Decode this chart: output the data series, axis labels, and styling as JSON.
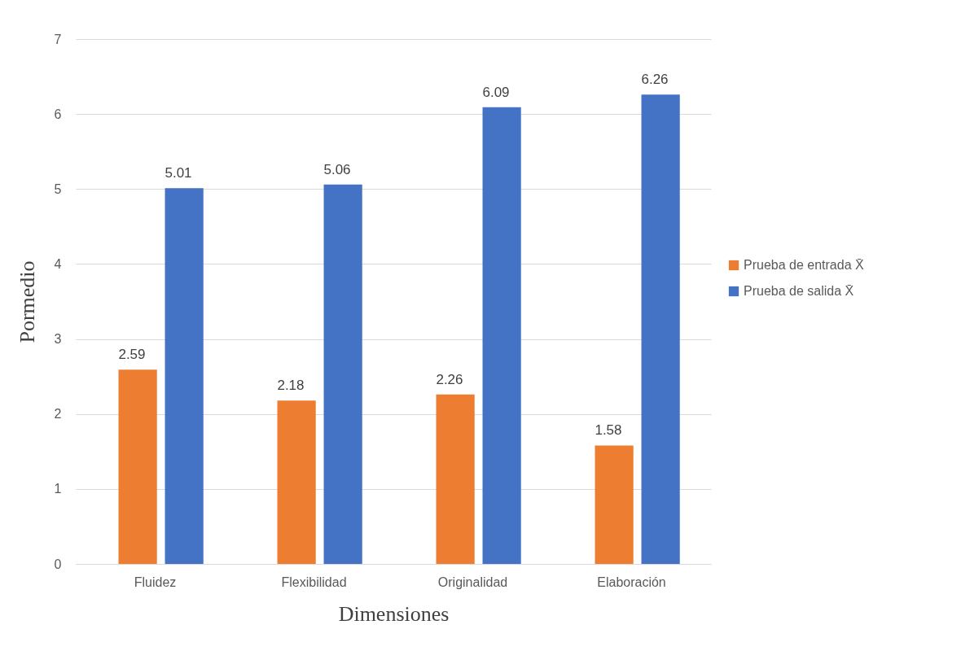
{
  "chart_data": {
    "type": "bar",
    "xlabel": "Dimensiones",
    "ylabel": "Pormedio",
    "categories": [
      "Fluidez",
      "Flexibilidad",
      "Originalidad",
      "Elaboración"
    ],
    "series": [
      {
        "name": "Prueba de entrada X̄",
        "color": "#ed7d31",
        "values": [
          2.59,
          2.18,
          2.26,
          1.58
        ]
      },
      {
        "name": "Prueba de salida X̄",
        "color": "#4472c4",
        "values": [
          5.01,
          5.06,
          6.09,
          6.26
        ]
      }
    ],
    "ylim": [
      0,
      7
    ],
    "yticks": [
      0,
      1,
      2,
      3,
      4,
      5,
      6,
      7
    ],
    "grid": "y",
    "legend": "right",
    "data_labels": true
  }
}
